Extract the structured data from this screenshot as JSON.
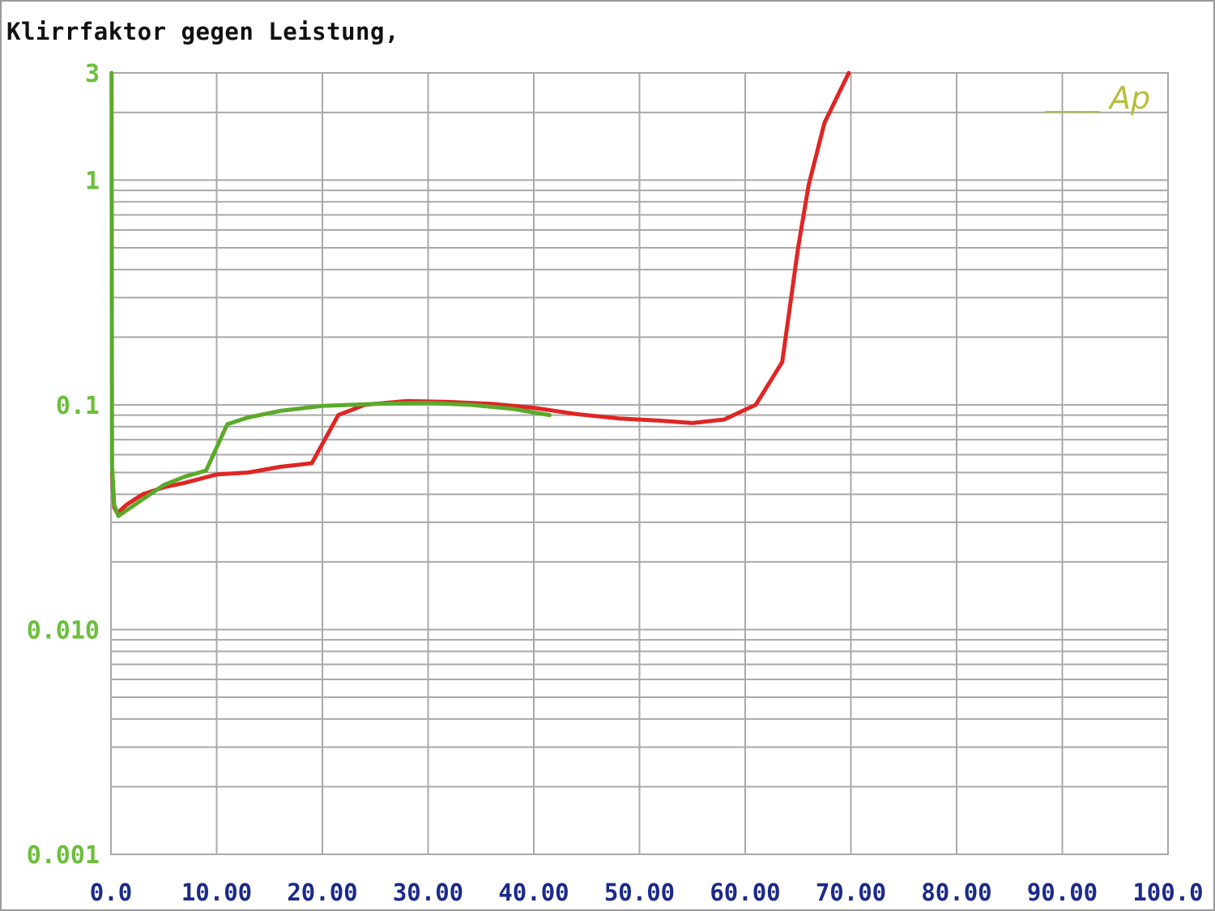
{
  "window": {
    "title": "Klirrfaktor gegen Leistung,"
  },
  "colors": {
    "background": "#ffffff",
    "grid": "#a9a9a9",
    "frame": "#9a9a9a",
    "axis_tick_x": "#1b2a8a",
    "axis_tick_y": "#6bbf3a",
    "series_red": "#e02525",
    "series_green": "#5aaa2a",
    "logo": "#b7bf3a"
  },
  "logo": {
    "text": "Ap"
  },
  "chart_data": {
    "type": "line",
    "title": "Klirrfaktor gegen Leistung,",
    "xlabel": "",
    "ylabel": "",
    "xlim": [
      0,
      100
    ],
    "ylim": [
      0.001,
      3
    ],
    "yscale": "log",
    "grid": true,
    "x_ticks": [
      "0.0",
      "10.00",
      "20.00",
      "30.00",
      "40.00",
      "50.00",
      "60.00",
      "70.00",
      "80.00",
      "90.00",
      "100.0"
    ],
    "y_ticks": [
      {
        "value": 3,
        "label": "3"
      },
      {
        "value": 1,
        "label": "1"
      },
      {
        "value": 0.1,
        "label": "0.1"
      },
      {
        "value": 0.01,
        "label": "0.010"
      },
      {
        "value": 0.001,
        "label": "0.001"
      }
    ],
    "series": [
      {
        "color": "#e02525",
        "points": [
          [
            0.1,
            0.05
          ],
          [
            0.3,
            0.035
          ],
          [
            0.6,
            0.033
          ],
          [
            1.5,
            0.036
          ],
          [
            3,
            0.04
          ],
          [
            5,
            0.043
          ],
          [
            7,
            0.045
          ],
          [
            10,
            0.049
          ],
          [
            13,
            0.05
          ],
          [
            16,
            0.053
          ],
          [
            19,
            0.055
          ],
          [
            20,
            0.067
          ],
          [
            21.5,
            0.09
          ],
          [
            24,
            0.1
          ],
          [
            28,
            0.104
          ],
          [
            32,
            0.103
          ],
          [
            36,
            0.101
          ],
          [
            40,
            0.097
          ],
          [
            44,
            0.091
          ],
          [
            48,
            0.087
          ],
          [
            52,
            0.085
          ],
          [
            55,
            0.083
          ],
          [
            58,
            0.086
          ],
          [
            61,
            0.1
          ],
          [
            63.5,
            0.155
          ],
          [
            65,
            0.5
          ],
          [
            66,
            0.95
          ],
          [
            67.5,
            1.8
          ],
          [
            69.8,
            3.0
          ]
        ]
      },
      {
        "color": "#5aaa2a",
        "points": [
          [
            0.05,
            3.0
          ],
          [
            0.1,
            0.054
          ],
          [
            0.3,
            0.036
          ],
          [
            0.7,
            0.032
          ],
          [
            1.5,
            0.034
          ],
          [
            3,
            0.038
          ],
          [
            5,
            0.044
          ],
          [
            7,
            0.048
          ],
          [
            9,
            0.051
          ],
          [
            11,
            0.082
          ],
          [
            13,
            0.088
          ],
          [
            16,
            0.094
          ],
          [
            20,
            0.099
          ],
          [
            25,
            0.101
          ],
          [
            30,
            0.102
          ],
          [
            34,
            0.1
          ],
          [
            38,
            0.096
          ],
          [
            41.5,
            0.09
          ]
        ]
      }
    ]
  }
}
